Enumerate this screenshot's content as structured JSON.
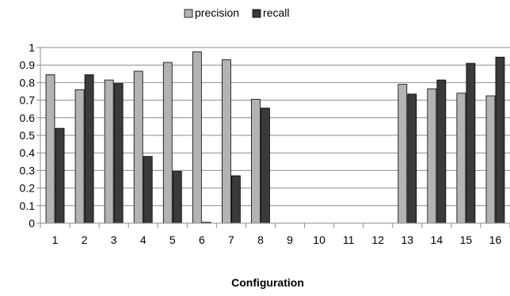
{
  "chart_data": {
    "type": "bar",
    "title": "",
    "xlabel": "Configuration",
    "ylabel": "",
    "ylim": [
      0,
      1
    ],
    "yticks": [
      "0",
      "0.1",
      "0.2",
      "0.3",
      "0.4",
      "0.5",
      "0.6",
      "0.7",
      "0.8",
      "0.9",
      "1"
    ],
    "categories": [
      "1",
      "2",
      "3",
      "4",
      "5",
      "6",
      "7",
      "8",
      "9",
      "10",
      "11",
      "12",
      "13",
      "14",
      "15",
      "16"
    ],
    "series": [
      {
        "name": "precision",
        "color": "#b3b3b3",
        "values": [
          0.845,
          0.76,
          0.815,
          0.865,
          0.915,
          0.975,
          0.93,
          0.705,
          0,
          0,
          0,
          0,
          0.79,
          0.765,
          0.74,
          0.725
        ]
      },
      {
        "name": "recall",
        "color": "#3a3a3a",
        "values": [
          0.54,
          0.845,
          0.795,
          0.38,
          0.295,
          0.005,
          0.27,
          0.655,
          0,
          0,
          0,
          0,
          0.735,
          0.815,
          0.91,
          0.945
        ]
      }
    ],
    "grid": true,
    "legend": "top-center"
  }
}
